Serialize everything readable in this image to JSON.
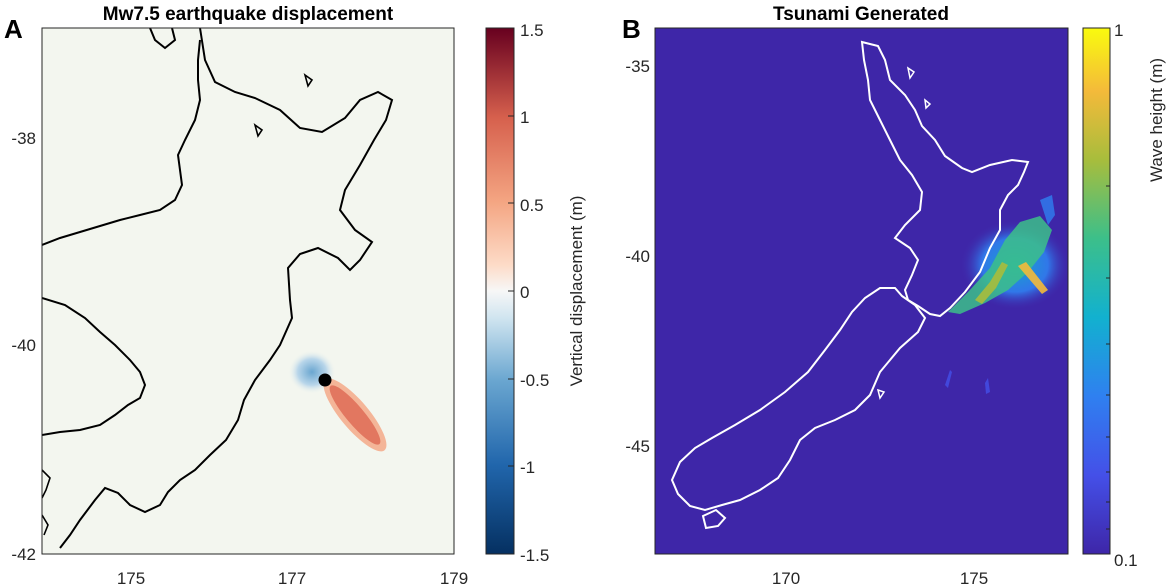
{
  "panel_a": {
    "letter": "A",
    "title": "Mw7.5 earthquake displacement",
    "x_ticks": [
      "175",
      "177",
      "179"
    ],
    "y_ticks": [
      "-38",
      "-40",
      "-42"
    ],
    "colorbar": {
      "label": "Vertical displacement (m)",
      "ticks": [
        "1.5",
        "1",
        "0.5",
        "0",
        "-0.5",
        "-1",
        "-1.5"
      ],
      "range": [
        -1.5,
        1.5
      ],
      "colormap": "blue-white-red",
      "low_color": "#053061",
      "high_color": "#67001f"
    },
    "background_color": "#f3f6ef",
    "coast_color": "#000000",
    "epicenter_marker": "black-dot"
  },
  "panel_b": {
    "letter": "B",
    "title": "Tsunami Generated",
    "x_ticks": [
      "170",
      "175"
    ],
    "y_ticks": [
      "-35",
      "-40",
      "-45"
    ],
    "colorbar": {
      "label": "Wave height (m)",
      "ticks": [
        "1",
        "0.1"
      ],
      "range": [
        0.1,
        1
      ],
      "scale": "log",
      "colormap": "parula"
    },
    "background_color": "#3e26a8",
    "coast_color": "#ffffff"
  }
}
